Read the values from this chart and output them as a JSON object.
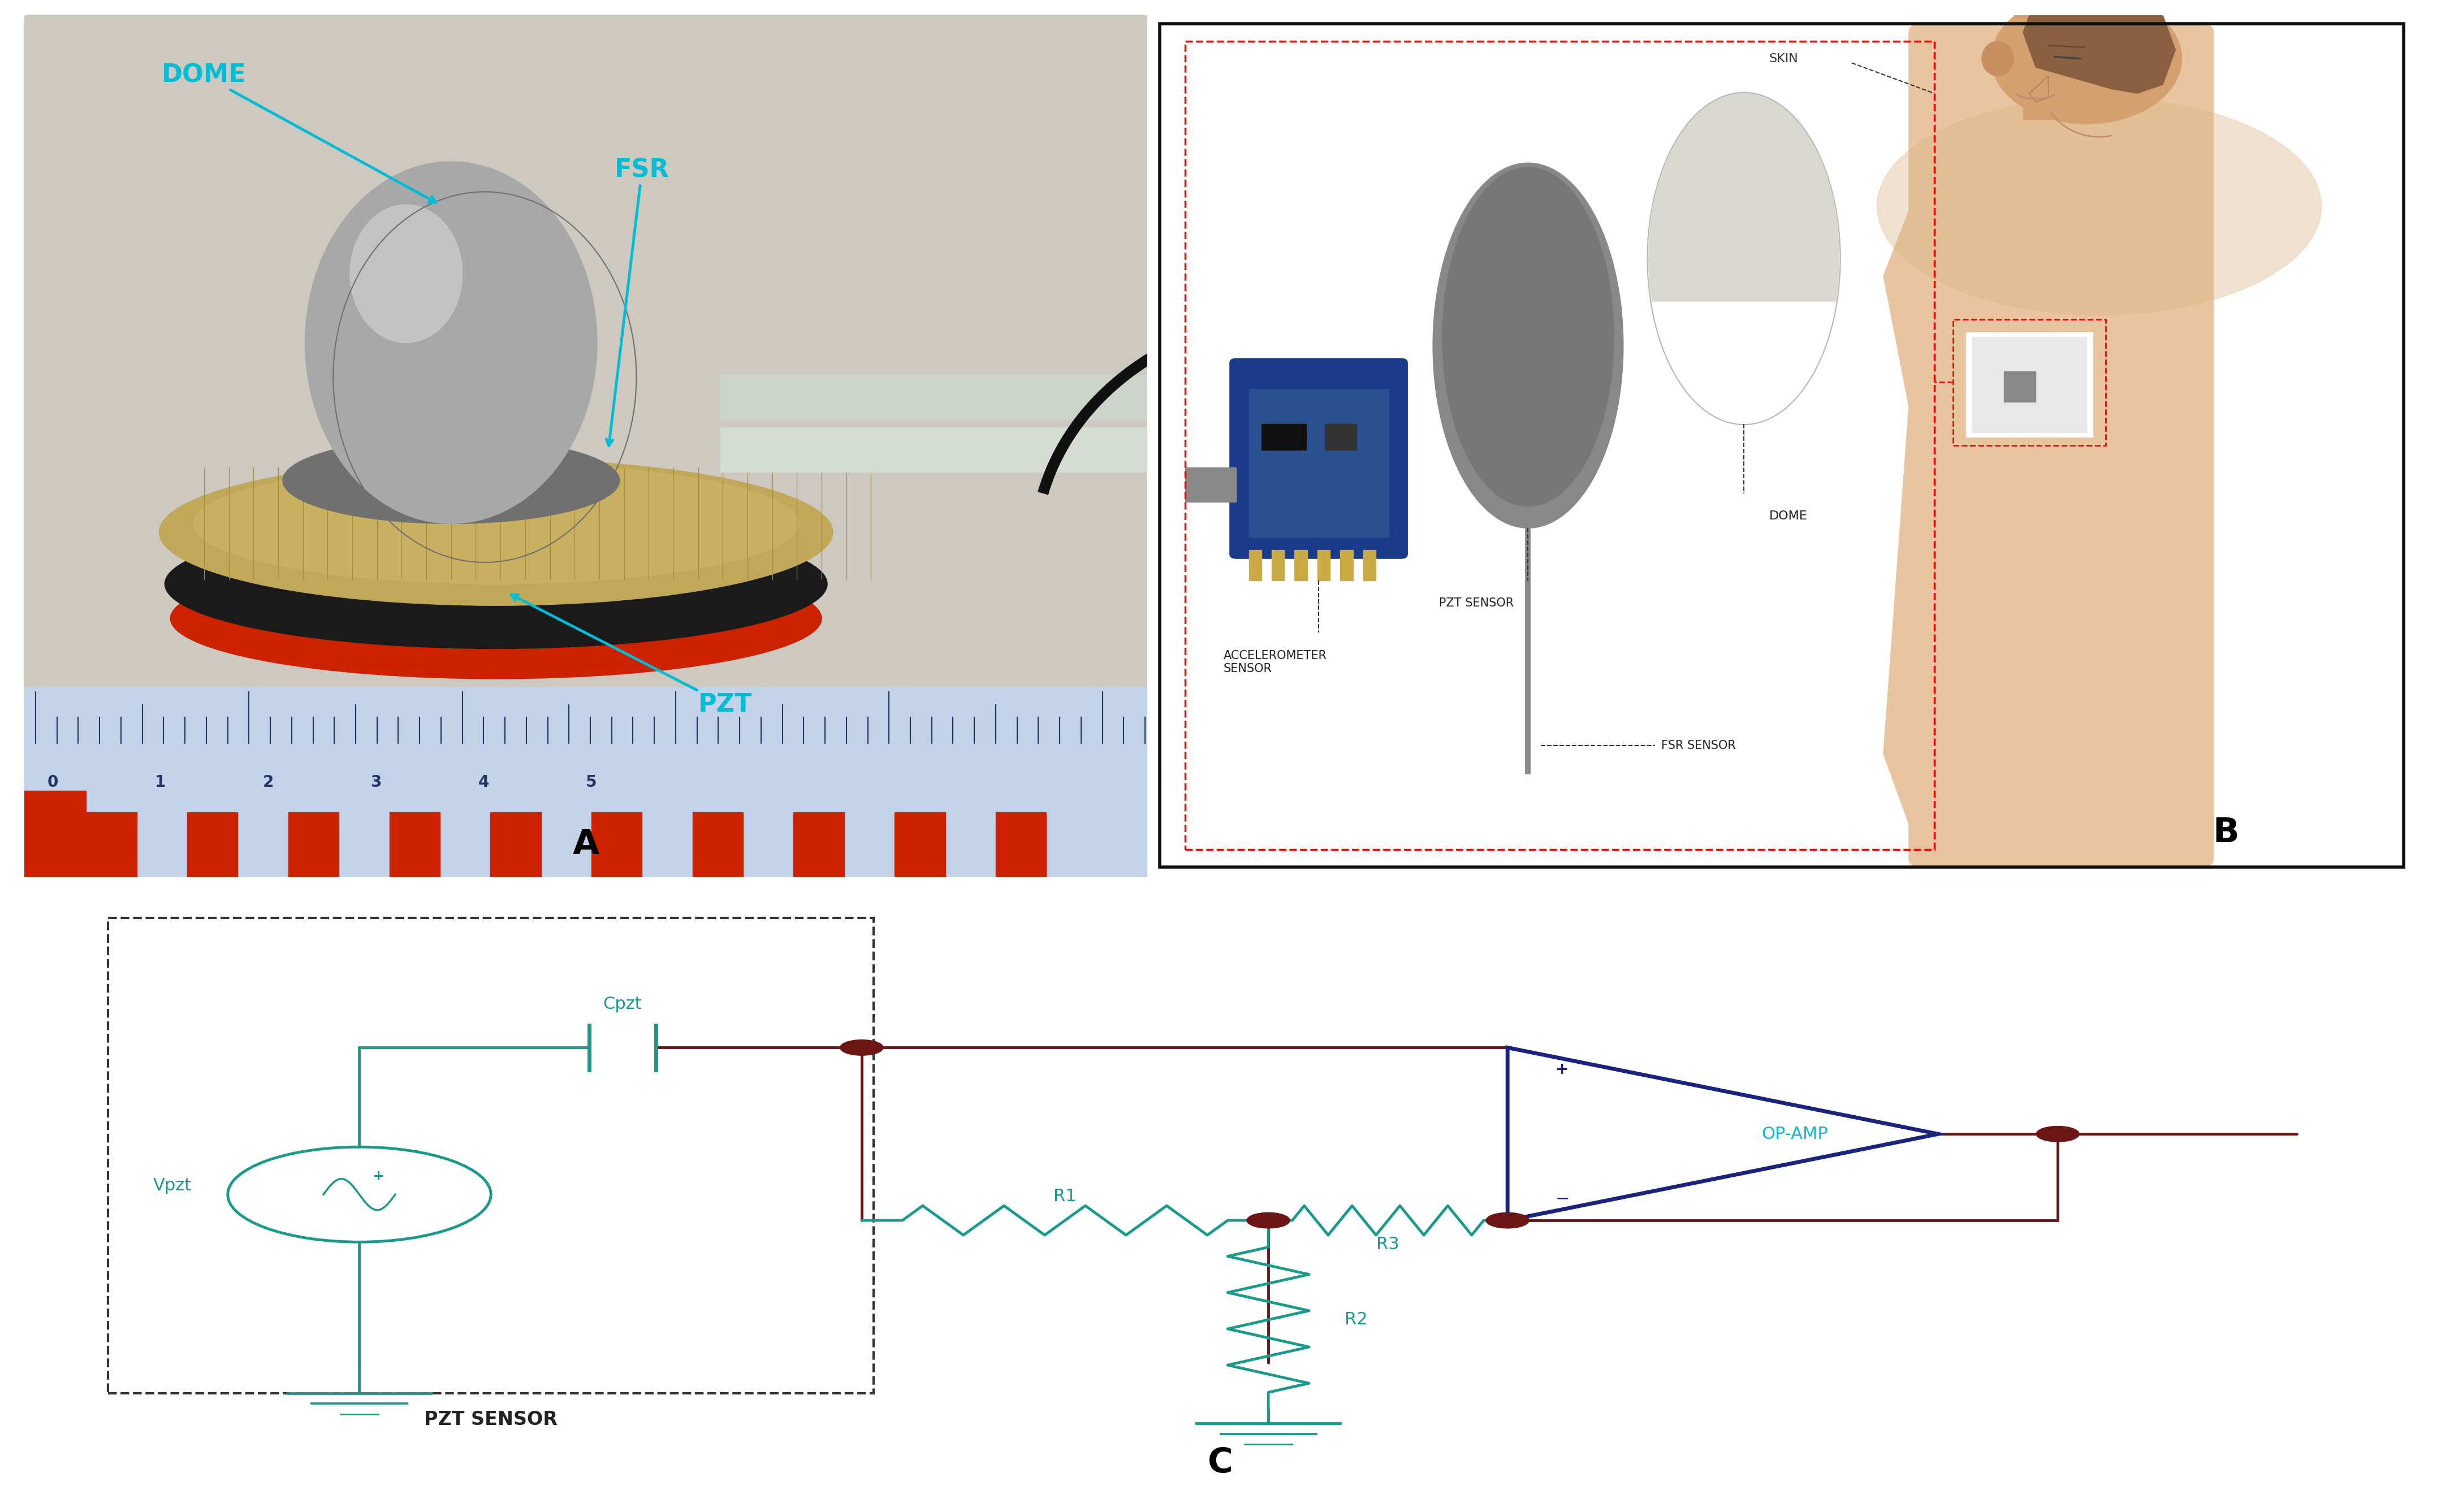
{
  "fig_width": 43.17,
  "fig_height": 26.75,
  "bg_color": "#ffffff",
  "cyan": "#00bcd4",
  "dark_blue": "#1a237e",
  "green": "#1a9a8a",
  "dark_red": "#6b1515",
  "label_dome": "DOME",
  "label_fsr": "FSR",
  "label_pzt": "PZT",
  "label_accel": "ACCELEROMETER\nSENSOR",
  "label_pzt_sensor_b": "PZT SENSOR",
  "label_dome_b": "DOME",
  "label_fsr_sensor": "FSR SENSOR",
  "label_skin": "SKIN",
  "label_cpzt": "Cpzt",
  "label_vpzt": "Vpzt",
  "label_r1": "R1",
  "label_r2": "R2",
  "label_r3": "R3",
  "label_opamp": "OP-AMP",
  "label_pzt_box": "PZT SENSOR",
  "panel_a": "A",
  "panel_b": "B",
  "panel_c": "C"
}
